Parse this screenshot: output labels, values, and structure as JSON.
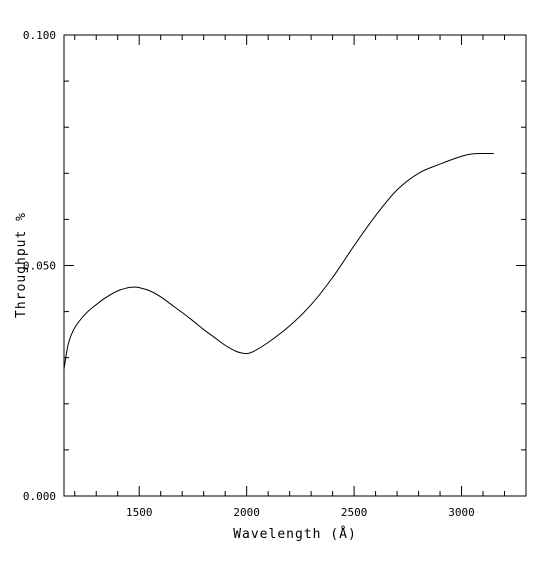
{
  "chart_data": {
    "type": "line",
    "title": "",
    "xlabel": "Wavelength (Å)",
    "ylabel": "Throughput %",
    "xlim": [
      1150,
      3300
    ],
    "ylim": [
      0.0,
      0.1
    ],
    "x_ticks": [
      1500,
      2000,
      2500,
      3000
    ],
    "x_tick_labels": [
      "1500",
      "2000",
      "2500",
      "3000"
    ],
    "y_ticks": [
      0.0,
      0.05,
      0.1
    ],
    "y_tick_labels": [
      "0.000",
      "0.050",
      "0.100"
    ],
    "x_minor_step": 100,
    "y_minor_step": 0.01,
    "grid": false,
    "legend": "none",
    "series": [
      {
        "x": [
          1150,
          1170,
          1200,
          1250,
          1300,
          1350,
          1400,
          1450,
          1480,
          1500,
          1550,
          1600,
          1650,
          1700,
          1750,
          1800,
          1850,
          1900,
          1950,
          1980,
          2000,
          2030,
          2100,
          2200,
          2300,
          2400,
          2500,
          2600,
          2700,
          2800,
          2900,
          3000,
          3050,
          3100,
          3130,
          3150
        ],
        "y": [
          0.0275,
          0.033,
          0.0365,
          0.0395,
          0.0415,
          0.0432,
          0.0445,
          0.0452,
          0.0453,
          0.0452,
          0.0445,
          0.0432,
          0.0415,
          0.0398,
          0.038,
          0.0361,
          0.0344,
          0.0327,
          0.0314,
          0.031,
          0.0309,
          0.0313,
          0.0333,
          0.0369,
          0.0415,
          0.0474,
          0.0543,
          0.0608,
          0.0664,
          0.07,
          0.072,
          0.0737,
          0.0742,
          0.0743,
          0.0743,
          0.0743
        ]
      }
    ]
  }
}
